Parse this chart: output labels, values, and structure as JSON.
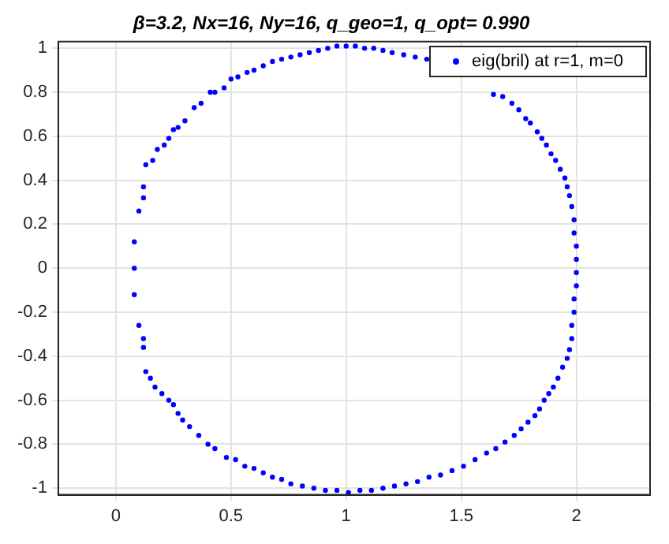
{
  "chart_data": {
    "type": "scatter",
    "title": "β=3.2, Nx=16, Ny=16, q_geo=1, q_opt= 0.990",
    "xlim": [
      -0.25,
      2.32
    ],
    "ylim": [
      -1.03,
      1.03
    ],
    "xticks": [
      0,
      0.5,
      1,
      1.5,
      2
    ],
    "yticks": [
      -1,
      -0.8,
      -0.6,
      -0.4,
      -0.2,
      0,
      0.2,
      0.4,
      0.6,
      0.8,
      1
    ],
    "grid": true,
    "legend": "top right",
    "marker": "circle",
    "series": [
      {
        "name": "eig(bril) at r=1, m=0",
        "color": "#0000ff",
        "x": [
          0.12,
          0.13,
          0.16,
          0.18,
          0.21,
          0.23,
          0.25,
          0.27,
          0.3,
          0.34,
          0.37,
          0.41,
          0.43,
          0.47,
          0.5,
          0.53,
          0.57,
          0.6,
          0.64,
          0.68,
          0.72,
          0.76,
          0.8,
          0.84,
          0.88,
          0.92,
          0.96,
          1.0,
          1.04,
          1.08,
          1.12,
          1.16,
          1.2,
          1.25,
          1.3,
          1.35,
          1.4,
          1.45,
          1.5,
          1.55,
          1.6,
          1.64,
          1.68,
          1.72,
          1.75,
          1.78,
          1.8,
          1.83,
          1.85,
          1.87,
          1.89,
          1.91,
          1.93,
          1.95,
          1.96,
          1.97,
          1.98,
          1.99,
          1.99,
          2.0,
          2.0,
          2.0,
          2.0,
          1.99,
          1.99,
          1.98,
          1.98,
          1.97,
          1.96,
          1.94,
          1.92,
          1.9,
          1.88,
          1.86,
          1.84,
          1.82,
          1.79,
          1.76,
          1.73,
          1.69,
          1.65,
          1.61,
          1.56,
          1.51,
          1.46,
          1.41,
          1.36,
          1.31,
          1.26,
          1.21,
          1.16,
          1.11,
          1.06,
          1.01,
          0.96,
          0.91,
          0.86,
          0.81,
          0.76,
          0.72,
          0.68,
          0.64,
          0.6,
          0.56,
          0.52,
          0.48,
          0.43,
          0.4,
          0.36,
          0.32,
          0.29,
          0.27,
          0.25,
          0.23,
          0.2,
          0.17,
          0.15,
          0.13,
          0.12,
          0.12,
          0.1,
          0.08,
          0.08,
          0.08,
          0.1,
          0.12
        ],
        "values": [
          0.37,
          0.47,
          0.49,
          0.54,
          0.56,
          0.59,
          0.63,
          0.64,
          0.67,
          0.73,
          0.75,
          0.8,
          0.8,
          0.82,
          0.86,
          0.87,
          0.89,
          0.9,
          0.92,
          0.94,
          0.95,
          0.96,
          0.97,
          0.98,
          0.99,
          1.0,
          1.01,
          1.01,
          1.01,
          1.0,
          1.0,
          0.99,
          0.98,
          0.97,
          0.96,
          0.95,
          null,
          null,
          null,
          null,
          null,
          0.79,
          0.78,
          0.75,
          0.72,
          0.68,
          0.66,
          0.62,
          0.59,
          0.56,
          0.52,
          0.49,
          0.45,
          0.41,
          0.37,
          0.33,
          0.28,
          0.22,
          0.16,
          0.1,
          0.04,
          -0.02,
          -0.08,
          -0.14,
          -0.2,
          -0.26,
          -0.32,
          -0.37,
          -0.41,
          -0.45,
          -0.5,
          -0.54,
          -0.57,
          -0.6,
          -0.64,
          -0.67,
          -0.7,
          -0.73,
          -0.76,
          -0.79,
          -0.82,
          -0.84,
          -0.87,
          -0.9,
          -0.92,
          -0.94,
          -0.95,
          -0.97,
          -0.98,
          -0.99,
          -1.0,
          -1.01,
          -1.01,
          -1.02,
          -1.01,
          -1.01,
          -1.0,
          -0.99,
          -0.98,
          -0.96,
          -0.95,
          -0.93,
          -0.91,
          -0.9,
          -0.87,
          -0.86,
          -0.82,
          -0.8,
          -0.76,
          -0.72,
          -0.69,
          -0.66,
          -0.62,
          -0.6,
          -0.57,
          -0.54,
          -0.5,
          -0.47,
          -0.36,
          -0.32,
          -0.26,
          -0.12,
          0.0,
          0.12,
          0.26,
          0.32
        ]
      }
    ]
  }
}
